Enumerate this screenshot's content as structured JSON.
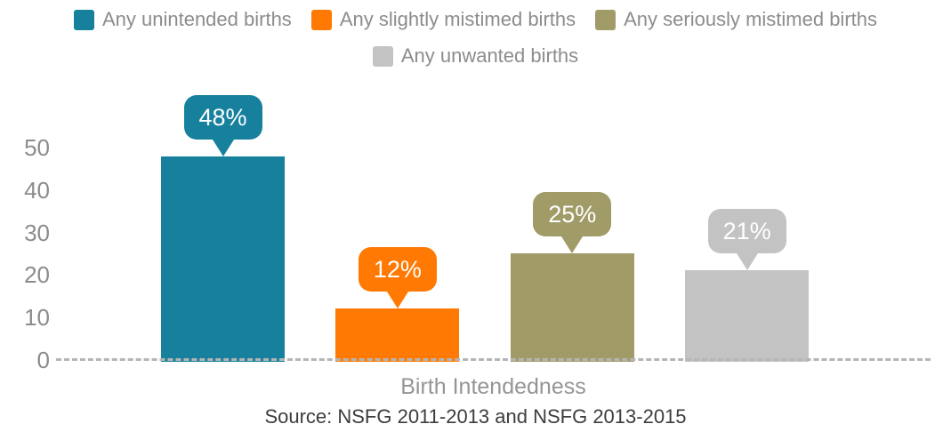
{
  "legend": {
    "items": [
      {
        "label": "Any unintended births",
        "color": "#16809d"
      },
      {
        "label": "Any slightly mistimed births",
        "color": "#ff7903"
      },
      {
        "label": "Any seriously mistimed births",
        "color": "#a19b68"
      },
      {
        "label": "Any unwanted births",
        "color": "#c3c3c3"
      }
    ]
  },
  "chart_data": {
    "type": "bar",
    "categories": [
      "Any unintended births",
      "Any slightly mistimed births",
      "Any seriously mistimed births",
      "Any unwanted births"
    ],
    "values": [
      48,
      12,
      25,
      21
    ],
    "data_labels": [
      "48%",
      "12%",
      "25%",
      "21%"
    ],
    "colors": [
      "#16809d",
      "#ff7903",
      "#a19b68",
      "#c3c3c3"
    ],
    "title": "",
    "xlabel": "Birth Intendedness",
    "ylabel": "",
    "ylim": [
      0,
      50
    ],
    "yticks": [
      0,
      10,
      20,
      30,
      40,
      50
    ],
    "grid": false,
    "legend_position": "top",
    "baseline_style": "dashed",
    "data_label_style": "speech-bubble-above-bar"
  },
  "source_note": "Source: NSFG 2011-2013 and NSFG 2013-2015"
}
